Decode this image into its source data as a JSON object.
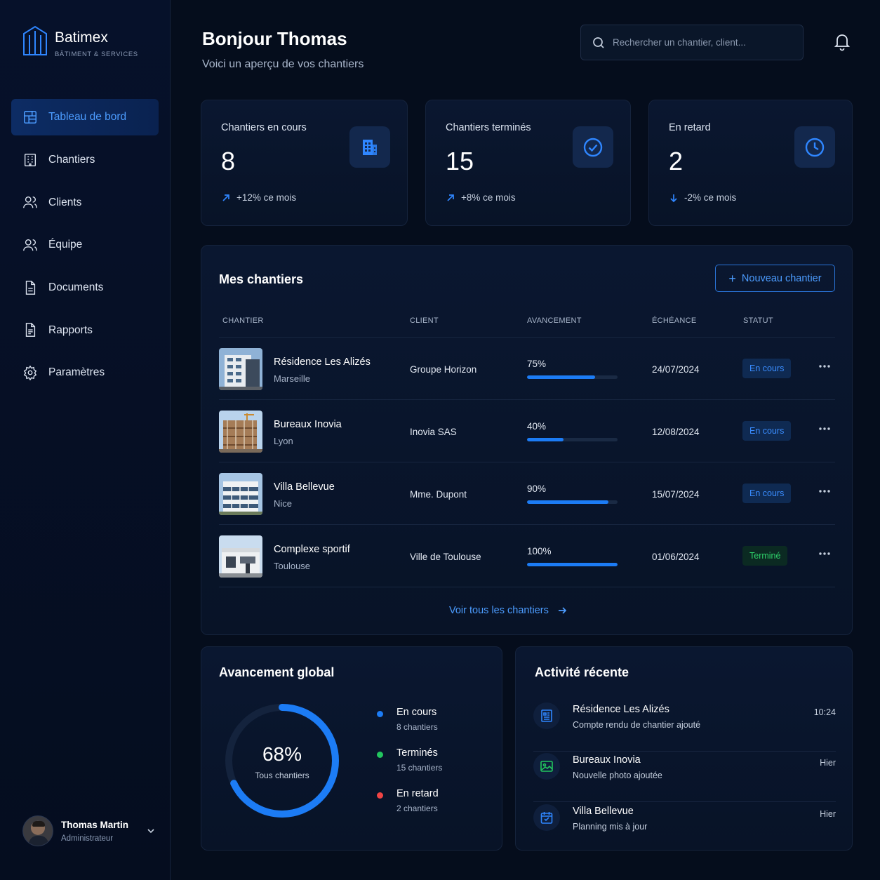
{
  "brand": {
    "name": "Batimex",
    "tagline": "BÂTIMENT & SERVICES"
  },
  "sidebar": {
    "items": [
      {
        "label": "Tableau de bord",
        "icon": "dashboard-icon",
        "active": true
      },
      {
        "label": "Chantiers",
        "icon": "building-icon"
      },
      {
        "label": "Clients",
        "icon": "users-icon"
      },
      {
        "label": "Équipe",
        "icon": "team-icon"
      },
      {
        "label": "Documents",
        "icon": "document-icon"
      },
      {
        "label": "Rapports",
        "icon": "report-icon"
      },
      {
        "label": "Paramètres",
        "icon": "gear-icon"
      }
    ]
  },
  "user": {
    "name": "Thomas Martin",
    "role": "Administrateur"
  },
  "header": {
    "greeting": "Bonjour Thomas",
    "subtitle": "Voici un aperçu de vos chantiers",
    "search_placeholder": "Rechercher un chantier, client..."
  },
  "stats": [
    {
      "label": "Chantiers en cours",
      "value": "8",
      "trend": "+12% ce mois",
      "trend_dir": "up",
      "icon": "building-icon",
      "color": "#2f86ff"
    },
    {
      "label": "Chantiers terminés",
      "value": "15",
      "trend": "+8% ce mois",
      "trend_dir": "up",
      "icon": "check-circle-icon",
      "color": "#2f86ff"
    },
    {
      "label": "En retard",
      "value": "2",
      "trend": "-2% ce mois",
      "trend_dir": "down",
      "icon": "clock-icon",
      "color": "#2f86ff"
    }
  ],
  "projects": {
    "title": "Mes chantiers",
    "new_button": "Nouveau chantier",
    "columns": [
      "CHANTIER",
      "CLIENT",
      "AVANCEMENT",
      "ÉCHÉANCE",
      "STATUT"
    ],
    "rows": [
      {
        "name": "Résidence Les Alizés",
        "city": "Marseille",
        "client": "Groupe Horizon",
        "progress": 75,
        "progress_label": "75%",
        "deadline": "24/07/2024",
        "status": "En cours",
        "status_type": "blue"
      },
      {
        "name": "Bureaux Inovia",
        "city": "Lyon",
        "client": "Inovia SAS",
        "progress": 40,
        "progress_label": "40%",
        "deadline": "12/08/2024",
        "status": "En cours",
        "status_type": "blue"
      },
      {
        "name": "Villa Bellevue",
        "city": "Nice",
        "client": "Mme. Dupont",
        "progress": 90,
        "progress_label": "90%",
        "deadline": "15/07/2024",
        "status": "En cours",
        "status_type": "blue"
      },
      {
        "name": "Complexe sportif",
        "city": "Toulouse",
        "client": "Ville de Toulouse",
        "progress": 100,
        "progress_label": "100%",
        "deadline": "01/06/2024",
        "status": "Terminé",
        "status_type": "green"
      }
    ],
    "view_all": "Voir tous les chantiers"
  },
  "global": {
    "title": "Avancement global",
    "value": 68,
    "value_label": "68%",
    "sublabel": "Tous chantiers",
    "legend": [
      {
        "name": "En cours",
        "count": "8 chantiers",
        "color": "#1c7cf5"
      },
      {
        "name": "Terminés",
        "count": "15 chantiers",
        "color": "#22c55e"
      },
      {
        "name": "En retard",
        "count": "2 chantiers",
        "color": "#ef4444"
      }
    ]
  },
  "activity": {
    "title": "Activité récente",
    "items": [
      {
        "title": "Résidence Les Alizés",
        "desc": "Compte rendu de chantier ajouté",
        "time": "10:24",
        "icon": "report-icon",
        "color": "#2f86ff"
      },
      {
        "title": "Bureaux Inovia",
        "desc": "Nouvelle photo ajoutée",
        "time": "Hier",
        "icon": "image-icon",
        "color": "#22c55e"
      },
      {
        "title": "Villa Bellevue",
        "desc": "Planning mis à jour",
        "time": "Hier",
        "icon": "calendar-icon",
        "color": "#2f86ff"
      }
    ]
  }
}
